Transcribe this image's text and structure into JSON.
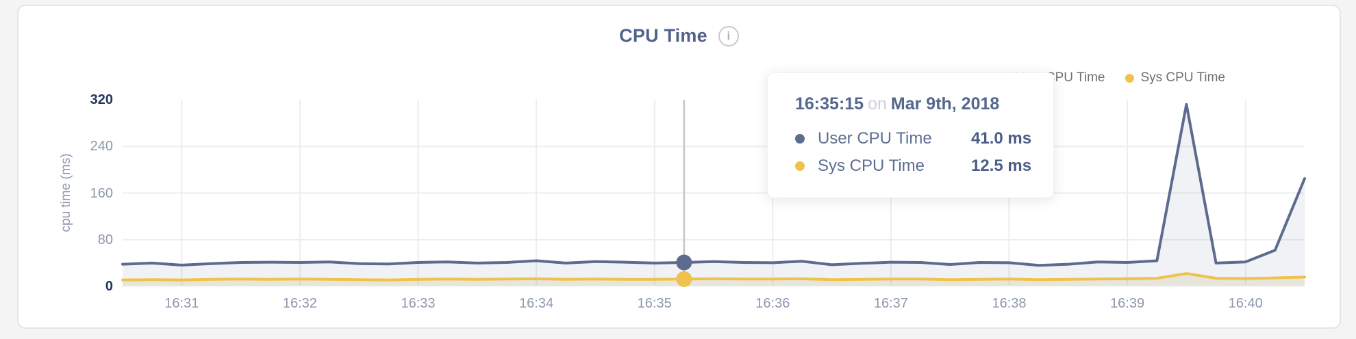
{
  "card": {
    "title": "CPU Time",
    "info_icon_glyph": "i"
  },
  "legend": [
    {
      "label": "User CPU Time",
      "color": "#5d6b8e"
    },
    {
      "label": "Sys CPU Time",
      "color": "#eec24d"
    }
  ],
  "tooltip": {
    "time": "16:35:15",
    "connector": "on",
    "date": "Mar 9th, 2018",
    "rows": [
      {
        "label": "User CPU Time",
        "value": "41.0 ms",
        "color": "#5d6b8e"
      },
      {
        "label": "Sys CPU Time",
        "value": "12.5 ms",
        "color": "#eec24d"
      }
    ]
  },
  "chart_data": {
    "type": "line",
    "title": "CPU Time",
    "xlabel": "",
    "ylabel": "cpu time (ms)",
    "ylim": [
      0,
      320
    ],
    "y_ticks": [
      0,
      80,
      160,
      240,
      320
    ],
    "x_ticks": [
      "16:31",
      "16:32",
      "16:33",
      "16:34",
      "16:35",
      "16:36",
      "16:37",
      "16:38",
      "16:39",
      "16:40"
    ],
    "x_start": "16:30:30",
    "x_end": "16:40:30",
    "interval_seconds": 15,
    "grid": true,
    "legend_position": "top-right",
    "hover_index": 19,
    "hover_time": "16:35:15",
    "hover_date": "Mar 9th, 2018",
    "series": [
      {
        "name": "User CPU Time",
        "color": "#5d6b8e",
        "fill": "rgba(93,107,142,0.09)",
        "values": [
          38,
          40,
          36.5,
          39,
          41,
          41.5,
          41,
          42,
          39,
          38.5,
          41,
          42,
          40,
          41,
          44,
          40,
          42.5,
          41.5,
          40,
          41,
          42.5,
          41,
          40.5,
          43,
          37,
          39.5,
          41.5,
          41,
          37.5,
          41,
          40.5,
          36,
          38,
          42,
          41,
          44,
          312,
          40,
          42,
          62,
          185
        ]
      },
      {
        "name": "Sys CPU Time",
        "color": "#eec24d",
        "fill": "rgba(204,183,128,0.22)",
        "values": [
          11,
          11.5,
          11,
          12,
          12.5,
          12,
          12.5,
          12,
          11.5,
          11,
          12,
          12.5,
          12,
          12.5,
          13,
          12,
          12.5,
          12,
          12,
          12.5,
          13,
          12.5,
          12.5,
          13,
          11.5,
          12,
          12.5,
          12.5,
          11.5,
          12,
          12.5,
          11.5,
          12,
          12.5,
          13,
          14,
          22,
          14,
          13.5,
          14.5,
          16
        ]
      }
    ],
    "colors": {
      "grid": "#ededed",
      "axis_line": "#e6e6e8",
      "crosshair": "#c6c6c6",
      "tick_label": "#8d97ae",
      "tick_label_extreme": "#24365e"
    }
  }
}
